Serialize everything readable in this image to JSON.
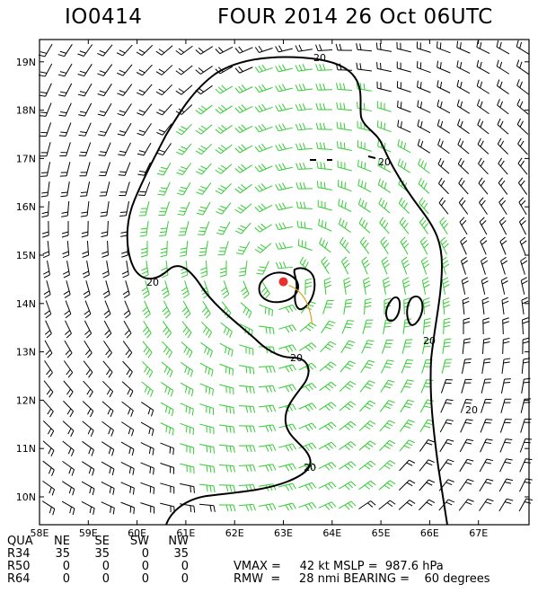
{
  "header": {
    "storm_id": "IO0414",
    "title": "FOUR 2014 26 Oct 06UTC"
  },
  "map": {
    "lon_ticks": [
      "58E",
      "59E",
      "60E",
      "61E",
      "62E",
      "63E",
      "64E",
      "65E",
      "66E",
      "67E"
    ],
    "lat_ticks": [
      "10N",
      "11N",
      "12N",
      "13N",
      "14N",
      "15N",
      "16N",
      "17N",
      "18N",
      "19N"
    ],
    "contour_label": "20",
    "center_lon": 63.0,
    "center_lat": 14.45,
    "colors": {
      "weak_barb": "#000000",
      "gale_barb": "#33cc33",
      "center_marker": "#e83030",
      "track": "#e0a020"
    }
  },
  "radii_table": {
    "header": [
      "QUA",
      "NE",
      "SE",
      "SW",
      "NW"
    ],
    "rows": [
      {
        "label": "R34",
        "values": [
          "35",
          "35",
          "0",
          "35"
        ]
      },
      {
        "label": "R50",
        "values": [
          "0",
          "0",
          "0",
          "0"
        ]
      },
      {
        "label": "R64",
        "values": [
          "0",
          "0",
          "0",
          "0"
        ]
      }
    ]
  },
  "stats": {
    "line1": "VMAX =     42 kt MSLP =  987.6 hPa",
    "line2": "RMW  =     28 nmi BEARING =    60 degrees"
  }
}
